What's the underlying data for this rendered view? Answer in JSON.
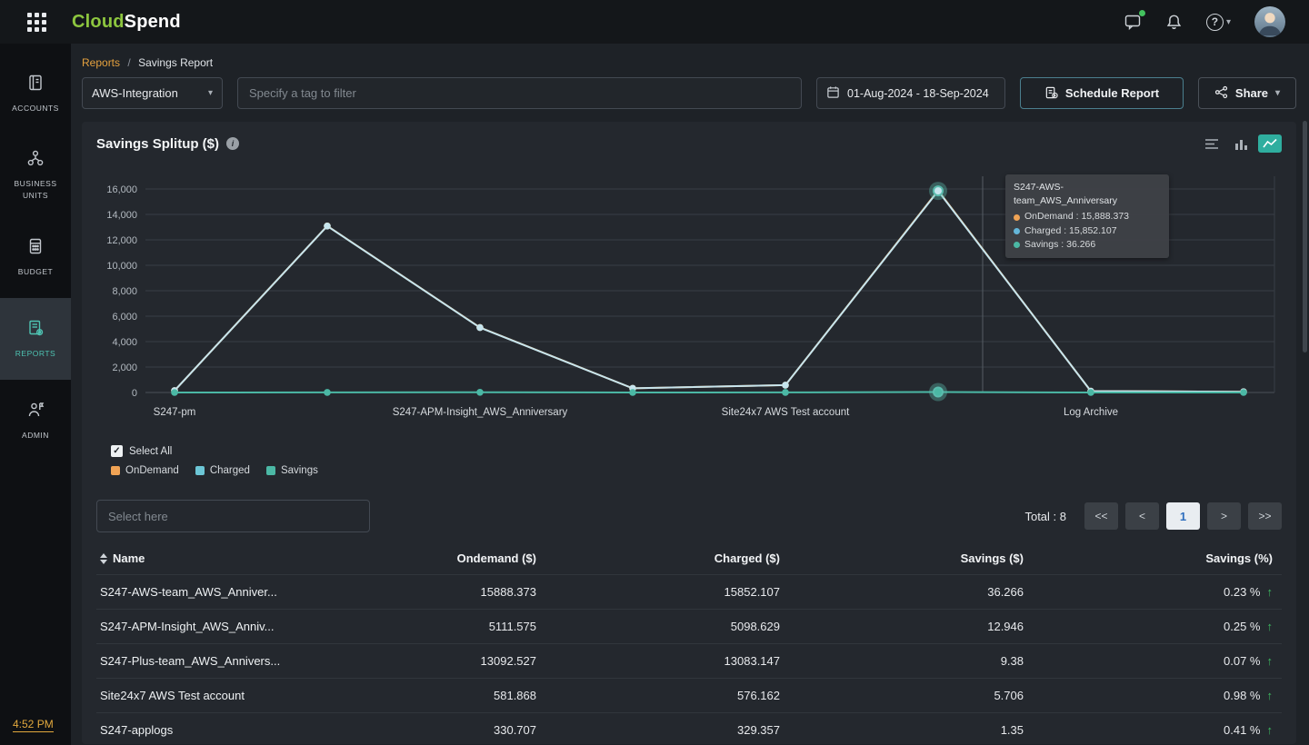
{
  "topbar": {
    "logo": {
      "part1": "Cloud",
      "part2": "Spend"
    }
  },
  "sidebar": {
    "items": [
      {
        "id": "accounts",
        "label": "ACCOUNTS",
        "active": false
      },
      {
        "id": "business-units",
        "label": "BUSINESS UNITS",
        "active": false
      },
      {
        "id": "budget",
        "label": "BUDGET",
        "active": false
      },
      {
        "id": "reports",
        "label": "REPORTS",
        "active": true
      },
      {
        "id": "admin",
        "label": "ADMIN",
        "active": false
      }
    ],
    "time": "4:52 PM"
  },
  "breadcrumb": {
    "section": "Reports",
    "separator": "/",
    "page": "Savings Report"
  },
  "filters": {
    "integration": "AWS-Integration",
    "tag_placeholder": "Specify a tag to filter",
    "date_range": "01-Aug-2024 - 18-Sep-2024",
    "schedule_label": "Schedule Report",
    "share_label": "Share"
  },
  "chart_card": {
    "title": "Savings Splitup ($)"
  },
  "chart_data": {
    "type": "line",
    "title": "Savings Splitup ($)",
    "x_tick_labels": [
      "S247-pm",
      "S247-APM-Insight_AWS_Anniversary",
      "Site24x7 AWS Test account",
      "Log Archive"
    ],
    "x_tick_positions": [
      0,
      2,
      4,
      6
    ],
    "num_points": 8,
    "y_ticks": [
      0,
      2000,
      4000,
      6000,
      8000,
      10000,
      12000,
      14000,
      16000
    ],
    "y_max": 16000,
    "series": [
      {
        "name": "OnDemand",
        "color": "#f0a355",
        "values": [
          150,
          13092.527,
          5111.575,
          330.707,
          581.868,
          15888.373,
          110,
          60
        ]
      },
      {
        "name": "Charged",
        "color": "#c6e5ee",
        "values": [
          148,
          13083.147,
          5098.629,
          329.357,
          576.162,
          15852.107,
          108,
          58
        ]
      },
      {
        "name": "Savings",
        "color": "#4bb8a5",
        "values": [
          2,
          9.38,
          12.946,
          1.35,
          5.706,
          36.266,
          2,
          2
        ]
      }
    ],
    "highlight": {
      "index": 5,
      "series": [
        "Charged",
        "Savings"
      ]
    }
  },
  "tooltip": {
    "title": "S247-AWS-team_AWS_Anniversary",
    "rows": [
      {
        "text": "OnDemand : 15,888.373",
        "color": "#f0a355"
      },
      {
        "text": "Charged : 15,852.107",
        "color": "#64b6d9"
      },
      {
        "text": "Savings : 36.266",
        "color": "#4bb8a5"
      }
    ]
  },
  "legend": {
    "select_all": "Select All",
    "items": [
      {
        "label": "OnDemand",
        "color": "#f0a355"
      },
      {
        "label": "Charged",
        "color": "#6cc6d6"
      },
      {
        "label": "Savings",
        "color": "#4bb8a5"
      }
    ]
  },
  "table": {
    "filter_placeholder": "Select here",
    "total": "Total : 8",
    "pagination": {
      "buttons": [
        "<<",
        "<",
        "1",
        ">",
        ">>"
      ],
      "active_index": 2
    },
    "columns": [
      "Name",
      "Ondemand ($)",
      "Charged ($)",
      "Savings ($)",
      "Savings (%)"
    ],
    "rows": [
      {
        "name": "S247-AWS-team_AWS_Anniver...",
        "ondemand": "15888.373",
        "charged": "15852.107",
        "savings": "36.266",
        "savings_pct": "0.23 %"
      },
      {
        "name": "S247-APM-Insight_AWS_Anniv...",
        "ondemand": "5111.575",
        "charged": "5098.629",
        "savings": "12.946",
        "savings_pct": "0.25 %"
      },
      {
        "name": "S247-Plus-team_AWS_Annivers...",
        "ondemand": "13092.527",
        "charged": "13083.147",
        "savings": "9.38",
        "savings_pct": "0.07 %"
      },
      {
        "name": "Site24x7 AWS Test account",
        "ondemand": "581.868",
        "charged": "576.162",
        "savings": "5.706",
        "savings_pct": "0.98 %"
      },
      {
        "name": "S247-applogs",
        "ondemand": "330.707",
        "charged": "329.357",
        "savings": "1.35",
        "savings_pct": "0.41 %"
      }
    ]
  },
  "icons": {
    "caret_down": "▾",
    "trend_up": "↑",
    "check": "✓",
    "info": "i",
    "help": "?"
  }
}
